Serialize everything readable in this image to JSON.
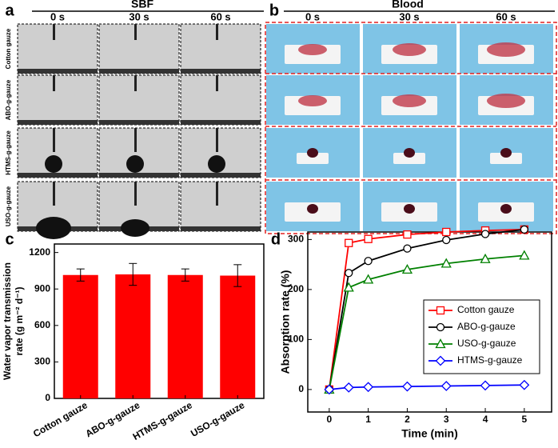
{
  "panel_a": {
    "label": "a",
    "title": "SBF",
    "times": [
      "0 s",
      "30 s",
      "60 s"
    ],
    "rows": [
      "Cotton gauze",
      "ABO-g-gauze",
      "HTMS-g-gauze",
      "USO-g-gauze"
    ]
  },
  "panel_b": {
    "label": "b",
    "title": "Blood",
    "times": [
      "0 s",
      "30 s",
      "60 s"
    ]
  },
  "chart_data": [
    {
      "label": "c",
      "type": "bar",
      "y_label": [
        "Water vapor transmission",
        "rate (g m⁻² d⁻¹)"
      ],
      "categories": [
        "Cotton gauze",
        "ABO-g-gauze",
        "HTMS-g-gauze",
        "USO-g-gauze"
      ],
      "values": [
        1015,
        1020,
        1015,
        1010
      ],
      "errors": [
        50,
        90,
        50,
        90
      ],
      "color": "#ff0000",
      "ylim": [
        0,
        1270
      ],
      "yticks": [
        0,
        300,
        600,
        900,
        1200
      ]
    },
    {
      "label": "d",
      "type": "line",
      "x_label": "Time (min)",
      "y_label": "Absorption rate (%)",
      "x": [
        0,
        0.5,
        1,
        2,
        3,
        4,
        5
      ],
      "series": [
        {
          "name": "Cotton gauze",
          "color": "#ff0000",
          "marker": "square",
          "values": [
            0,
            293,
            301,
            310,
            315,
            318,
            320
          ]
        },
        {
          "name": "ABO-g-gauze",
          "color": "#000000",
          "marker": "circle",
          "values": [
            0,
            233,
            257,
            282,
            299,
            311,
            320
          ]
        },
        {
          "name": "USO-g-gauze",
          "color": "#008000",
          "marker": "triangle",
          "values": [
            0,
            204,
            220,
            240,
            252,
            261,
            268
          ]
        },
        {
          "name": "HTMS-g-gauze",
          "color": "#0000ff",
          "marker": "diamond",
          "values": [
            0,
            4,
            5,
            6,
            7,
            8,
            9
          ]
        }
      ],
      "xlim": [
        -0.55,
        5.7
      ],
      "ylim": [
        -45,
        315
      ],
      "xticks": [
        0,
        1,
        2,
        3,
        4,
        5
      ],
      "yticks": [
        0,
        100,
        200,
        300
      ]
    }
  ]
}
